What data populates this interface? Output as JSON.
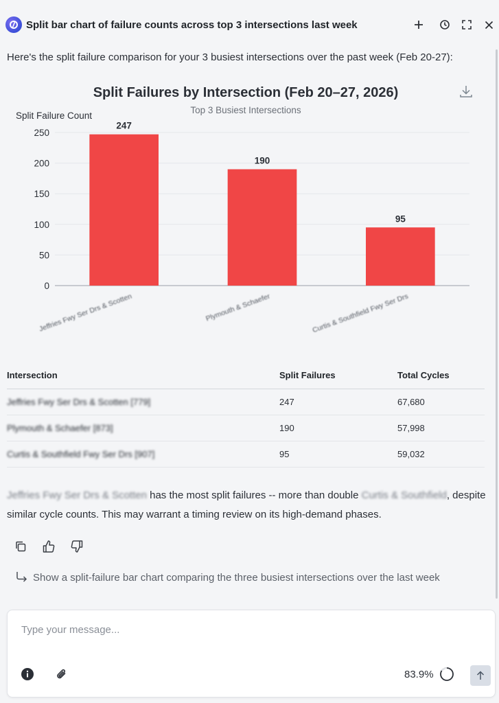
{
  "header": {
    "title": "Split bar chart of failure counts across top 3 intersections last week",
    "new_icon": "plus-icon",
    "history_icon": "clock-icon",
    "expand_icon": "expand-icon",
    "close_icon": "close-icon"
  },
  "message": {
    "intro": "Here's the split failure comparison for your 3 busiest intersections over the past week (Feb 20-27):",
    "summary_lead": "Jeffries Fwy Ser Drs & Scotten",
    "summary_mid": " has the most split failures -- more than double ",
    "summary_ref": "Curtis & Southfield",
    "summary_tail": ", despite similar cycle counts. This may warrant a timing review on its high-demand phases."
  },
  "chart_data": {
    "type": "bar",
    "title": "Split Failures by Intersection (Feb 20–27, 2026)",
    "subtitle": "Top 3 Busiest Intersections",
    "ylabel": "Split Failure Count",
    "xlabel": "",
    "categories": [
      "Jeffries Fwy Ser Drs & Scotten",
      "Plymouth & Schaefer",
      "Curtis & Southfield Fwy Ser Drs"
    ],
    "values": [
      247,
      190,
      95
    ],
    "ylim": [
      0,
      250
    ],
    "yticks": [
      0,
      50,
      100,
      150,
      200,
      250
    ],
    "grid": true,
    "bar_color": "#f04646",
    "download_icon": "download-icon"
  },
  "table": {
    "headers": [
      "Intersection",
      "Split Failures",
      "Total Cycles"
    ],
    "rows": [
      [
        "Jeffries Fwy Ser Drs & Scotten [779]",
        "247",
        "67,680"
      ],
      [
        "Plymouth & Schaefer [873]",
        "190",
        "57,998"
      ],
      [
        "Curtis & Southfield Fwy Ser Drs [907]",
        "95",
        "59,032"
      ]
    ]
  },
  "actions": {
    "copy_icon": "copy-icon",
    "like_icon": "thumbs-up-icon",
    "dislike_icon": "thumbs-down-icon"
  },
  "suggestion": {
    "text": "Show a split-failure bar chart comparing the three busiest intersections over the last week"
  },
  "composer": {
    "placeholder": "Type your message...",
    "zoom": "83.9%",
    "progress": 0.839
  },
  "colors": {
    "accent": "#3b4fd8",
    "bar": "#f04646",
    "send_bg": "#d9dee6"
  }
}
